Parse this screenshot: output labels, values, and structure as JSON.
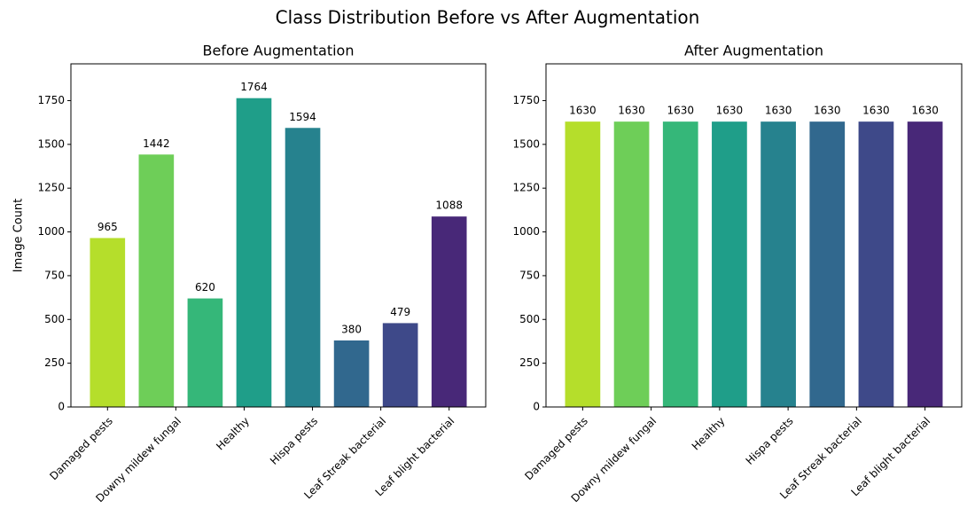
{
  "title": "Class Distribution Before vs After Augmentation",
  "chart_data": [
    {
      "type": "bar",
      "title": "Before Augmentation",
      "ylabel": "Image Count",
      "x": [
        0,
        1,
        2,
        3,
        4,
        5,
        6,
        7
      ],
      "values": [
        965,
        1442,
        620,
        1764,
        1594,
        380,
        479,
        1088
      ],
      "colors": [
        "#b5de2b",
        "#6ece58",
        "#35b779",
        "#1f9e89",
        "#26828e",
        "#31688e",
        "#3e4989",
        "#482878"
      ],
      "xlim": [
        -0.75,
        7.75
      ],
      "xticks": [
        {
          "value": 0,
          "label": "Damaged pests"
        },
        {
          "value": 1.4,
          "label": "Downy mildew fungal"
        },
        {
          "value": 2.8,
          "label": "Healthy"
        },
        {
          "value": 4.2,
          "label": "Hispa pests"
        },
        {
          "value": 5.6,
          "label": "Leaf Streak bacterial"
        },
        {
          "value": 7,
          "label": "Leaf blight bacterial"
        }
      ],
      "ylim": [
        0,
        1960
      ],
      "yticks": [
        0,
        250,
        500,
        750,
        1000,
        1250,
        1500,
        1750
      ]
    },
    {
      "type": "bar",
      "title": "After Augmentation",
      "x": [
        0,
        1,
        2,
        3,
        4,
        5,
        6,
        7
      ],
      "values": [
        1630,
        1630,
        1630,
        1630,
        1630,
        1630,
        1630,
        1630
      ],
      "colors": [
        "#b5de2b",
        "#6ece58",
        "#35b779",
        "#1f9e89",
        "#26828e",
        "#31688e",
        "#3e4989",
        "#482878"
      ],
      "xlim": [
        -0.75,
        7.75
      ],
      "xticks": [
        {
          "value": 0,
          "label": "Damaged pests"
        },
        {
          "value": 1.4,
          "label": "Downy mildew fungal"
        },
        {
          "value": 2.8,
          "label": "Healthy"
        },
        {
          "value": 4.2,
          "label": "Hispa pests"
        },
        {
          "value": 5.6,
          "label": "Leaf Streak bacterial"
        },
        {
          "value": 7,
          "label": "Leaf blight bacterial"
        }
      ],
      "ylim": [
        0,
        1960
      ],
      "yticks": [
        0,
        250,
        500,
        750,
        1000,
        1250,
        1500,
        1750
      ]
    }
  ]
}
